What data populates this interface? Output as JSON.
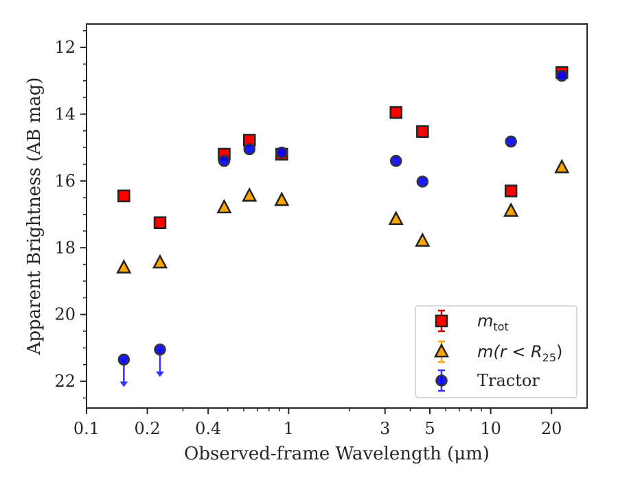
{
  "chart_data": {
    "type": "scatter",
    "xlabel": "Observed-frame Wavelength (μm)",
    "ylabel": "Apparent Brightness (AB mag)",
    "x_scale": "log",
    "y_inverted": true,
    "xlim": [
      0.1,
      30
    ],
    "ylim": [
      22.8,
      11.3
    ],
    "x_ticks": [
      0.1,
      0.2,
      0.4,
      1,
      3,
      5,
      10,
      20
    ],
    "x_tick_labels": [
      "0.1",
      "0.2",
      "0.4",
      "1",
      "3",
      "5",
      "10",
      "20"
    ],
    "y_ticks": [
      12,
      14,
      16,
      18,
      20,
      22
    ],
    "y_tick_labels": [
      "12",
      "14",
      "16",
      "18",
      "20",
      "22"
    ],
    "legend_position": "lower-right",
    "grid": false,
    "series": [
      {
        "name": "m_tot",
        "legend_label": "m",
        "legend_sub": "tot",
        "marker": "square",
        "color": "#ff0000",
        "edge": "#222222",
        "points": [
          {
            "x": 0.153,
            "y": 16.45
          },
          {
            "x": 0.231,
            "y": 17.25
          },
          {
            "x": 0.48,
            "y": 15.2
          },
          {
            "x": 0.64,
            "y": 14.78
          },
          {
            "x": 0.925,
            "y": 15.2
          },
          {
            "x": 3.4,
            "y": 13.95
          },
          {
            "x": 4.6,
            "y": 14.52
          },
          {
            "x": 12.6,
            "y": 16.3
          },
          {
            "x": 22.5,
            "y": 12.75
          }
        ]
      },
      {
        "name": "m(r < R25)",
        "legend_label": "m(r < R",
        "legend_sub": "25",
        "legend_suffix": ")",
        "marker": "triangle",
        "color": "#ffa500",
        "edge": "#222222",
        "points": [
          {
            "x": 0.153,
            "y": 18.6
          },
          {
            "x": 0.231,
            "y": 18.45
          },
          {
            "x": 0.48,
            "y": 16.8
          },
          {
            "x": 0.64,
            "y": 16.45
          },
          {
            "x": 0.925,
            "y": 16.58
          },
          {
            "x": 3.4,
            "y": 17.15
          },
          {
            "x": 4.6,
            "y": 17.8
          },
          {
            "x": 12.6,
            "y": 16.9
          },
          {
            "x": 22.5,
            "y": 15.6
          }
        ]
      },
      {
        "name": "Tractor",
        "legend_label": "Tractor",
        "marker": "circle",
        "color": "#0000ff",
        "edge": "#333333",
        "points": [
          {
            "x": 0.153,
            "y": 21.35,
            "upper_limit": true
          },
          {
            "x": 0.231,
            "y": 21.05,
            "upper_limit": true
          },
          {
            "x": 0.48,
            "y": 15.4
          },
          {
            "x": 0.64,
            "y": 15.05
          },
          {
            "x": 0.925,
            "y": 15.15
          },
          {
            "x": 3.4,
            "y": 15.4
          },
          {
            "x": 4.6,
            "y": 16.02
          },
          {
            "x": 12.6,
            "y": 14.82
          },
          {
            "x": 22.5,
            "y": 12.85
          }
        ]
      }
    ]
  }
}
